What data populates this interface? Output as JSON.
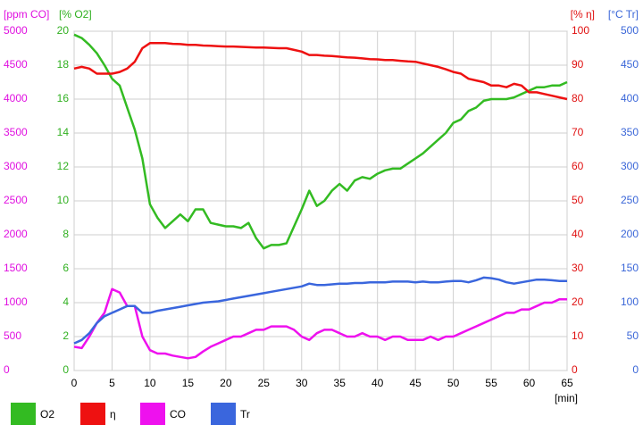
{
  "chart_data": {
    "type": "line",
    "x": [
      0,
      1,
      2,
      3,
      4,
      5,
      6,
      7,
      8,
      9,
      10,
      11,
      12,
      13,
      14,
      15,
      16,
      17,
      18,
      19,
      20,
      21,
      22,
      23,
      24,
      25,
      26,
      27,
      28,
      29,
      30,
      31,
      32,
      33,
      34,
      35,
      36,
      37,
      38,
      39,
      40,
      41,
      42,
      43,
      44,
      45,
      46,
      47,
      48,
      49,
      50,
      51,
      52,
      53,
      54,
      55,
      56,
      57,
      58,
      59,
      60,
      61,
      62,
      63,
      64,
      65
    ],
    "xlim": [
      0,
      65
    ],
    "xticks": [
      0,
      5,
      10,
      15,
      20,
      25,
      30,
      35,
      40,
      45,
      50,
      55,
      60,
      65
    ],
    "xlabel": "[min]",
    "grid": true,
    "axes": [
      {
        "label": "[ppm CO]",
        "color": "#e010e0",
        "side": "left",
        "lim": [
          0,
          5000
        ],
        "ticks": [
          0,
          500,
          1000,
          1500,
          2000,
          2500,
          3000,
          3500,
          4000,
          4500,
          5000
        ]
      },
      {
        "label": "[% O2]",
        "color": "#30b020",
        "side": "left",
        "lim": [
          0,
          20
        ],
        "ticks": [
          0,
          2,
          4,
          6,
          8,
          10,
          12,
          14,
          16,
          18,
          20
        ]
      },
      {
        "label": "[% η]",
        "color": "#e01010",
        "side": "right",
        "lim": [
          0,
          100
        ],
        "ticks": [
          0,
          10,
          20,
          30,
          40,
          50,
          60,
          70,
          80,
          90,
          100
        ]
      },
      {
        "label": "[°C Tr]",
        "color": "#3a66d8",
        "side": "right",
        "lim": [
          0,
          500
        ],
        "ticks": [
          0,
          50,
          100,
          150,
          200,
          250,
          300,
          350,
          400,
          450,
          500
        ]
      }
    ],
    "series": [
      {
        "name": "O2",
        "color": "#33bb22",
        "axis": 1,
        "values": [
          19.8,
          19.6,
          19.2,
          18.7,
          18.0,
          17.2,
          16.8,
          15.5,
          14.2,
          12.5,
          9.8,
          9.0,
          8.4,
          8.8,
          9.2,
          8.8,
          9.5,
          9.5,
          8.7,
          8.6,
          8.5,
          8.5,
          8.4,
          8.7,
          7.8,
          7.2,
          7.4,
          7.4,
          7.5,
          8.5,
          9.5,
          10.6,
          9.7,
          10.0,
          10.6,
          11.0,
          10.6,
          11.2,
          11.4,
          11.3,
          11.6,
          11.8,
          11.9,
          11.9,
          12.2,
          12.5,
          12.8,
          13.2,
          13.6,
          14.0,
          14.6,
          14.8,
          15.3,
          15.5,
          15.9,
          16.0,
          16.0,
          16.0,
          16.1,
          16.3,
          16.5,
          16.7,
          16.7,
          16.8,
          16.8,
          17.0
        ]
      },
      {
        "name": "η",
        "color": "#ee1111",
        "axis": 2,
        "values": [
          89,
          89.5,
          89,
          87.5,
          87.5,
          87.5,
          88,
          89,
          91,
          95,
          96.5,
          96.5,
          96.5,
          96.3,
          96.2,
          96,
          96,
          95.8,
          95.7,
          95.6,
          95.5,
          95.5,
          95.4,
          95.3,
          95.2,
          95.2,
          95.1,
          95,
          95,
          94.5,
          94,
          93,
          93,
          92.8,
          92.7,
          92.5,
          92.3,
          92.2,
          92,
          91.8,
          91.7,
          91.5,
          91.5,
          91.3,
          91.1,
          91,
          90.5,
          90,
          89.5,
          88.8,
          88,
          87.5,
          86,
          85.5,
          85,
          84,
          84,
          83.5,
          84.5,
          84,
          82,
          82,
          81.5,
          81,
          80.5,
          80
        ]
      },
      {
        "name": "CO",
        "color": "#ee11ee",
        "axis": 0,
        "values": [
          350,
          330,
          500,
          700,
          850,
          1200,
          1150,
          950,
          950,
          500,
          300,
          250,
          250,
          220,
          200,
          180,
          200,
          280,
          350,
          400,
          450,
          500,
          500,
          550,
          600,
          600,
          650,
          650,
          650,
          600,
          500,
          450,
          550,
          600,
          600,
          550,
          500,
          500,
          550,
          500,
          500,
          450,
          500,
          500,
          450,
          450,
          450,
          500,
          450,
          500,
          500,
          550,
          600,
          650,
          700,
          750,
          800,
          850,
          850,
          900,
          900,
          950,
          1000,
          1000,
          1050,
          1050
        ]
      },
      {
        "name": "Tr",
        "color": "#3a66dd",
        "axis": 3,
        "values": [
          40,
          45,
          55,
          70,
          80,
          85,
          90,
          95,
          95,
          85,
          85,
          88,
          90,
          92,
          94,
          96,
          98,
          100,
          101,
          102,
          104,
          106,
          108,
          110,
          112,
          114,
          116,
          118,
          120,
          122,
          124,
          128,
          126,
          126,
          127,
          128,
          128,
          129,
          129,
          130,
          130,
          130,
          131,
          131,
          131,
          130,
          131,
          130,
          130,
          131,
          132,
          132,
          130,
          133,
          137,
          136,
          134,
          130,
          128,
          130,
          132,
          134,
          134,
          133,
          132,
          132
        ]
      }
    ]
  }
}
